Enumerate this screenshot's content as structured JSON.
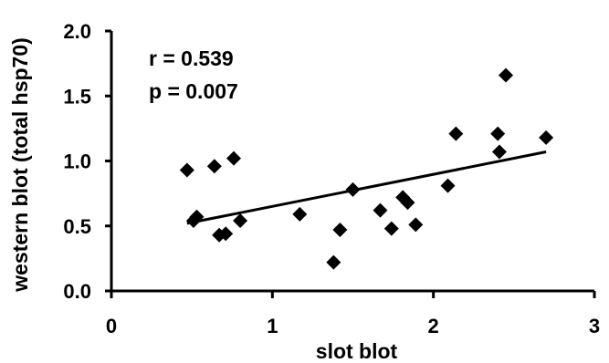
{
  "chart_data": {
    "type": "scatter",
    "xlabel": "slot blot",
    "ylabel": "western blot (total hsp70)",
    "xlim": [
      0,
      3
    ],
    "ylim": [
      0,
      2.0
    ],
    "x_ticks": [
      "0",
      "1",
      "2",
      "3"
    ],
    "y_ticks": [
      "0.0",
      "0.5",
      "1.0",
      "1.5",
      "2.0"
    ],
    "grid": false,
    "annotations": [
      "r = 0.539",
      "p = 0.007"
    ],
    "marker": "diamond",
    "color": "#000000",
    "points": [
      {
        "x": 0.47,
        "y": 0.93
      },
      {
        "x": 0.51,
        "y": 0.54
      },
      {
        "x": 0.53,
        "y": 0.57
      },
      {
        "x": 0.64,
        "y": 0.96
      },
      {
        "x": 0.67,
        "y": 0.43
      },
      {
        "x": 0.71,
        "y": 0.44
      },
      {
        "x": 0.76,
        "y": 1.02
      },
      {
        "x": 0.8,
        "y": 0.54
      },
      {
        "x": 1.17,
        "y": 0.59
      },
      {
        "x": 1.38,
        "y": 0.22
      },
      {
        "x": 1.42,
        "y": 0.47
      },
      {
        "x": 1.5,
        "y": 0.78
      },
      {
        "x": 1.67,
        "y": 0.62
      },
      {
        "x": 1.74,
        "y": 0.48
      },
      {
        "x": 1.81,
        "y": 0.72
      },
      {
        "x": 1.84,
        "y": 0.68
      },
      {
        "x": 1.89,
        "y": 0.51
      },
      {
        "x": 2.09,
        "y": 0.81
      },
      {
        "x": 2.14,
        "y": 1.21
      },
      {
        "x": 2.4,
        "y": 1.21
      },
      {
        "x": 2.41,
        "y": 1.07
      },
      {
        "x": 2.45,
        "y": 1.66
      },
      {
        "x": 2.7,
        "y": 1.18
      }
    ],
    "trendline": {
      "type": "linear",
      "x_start": 0.47,
      "y_start": 0.52,
      "x_end": 2.7,
      "y_end": 1.07
    }
  }
}
